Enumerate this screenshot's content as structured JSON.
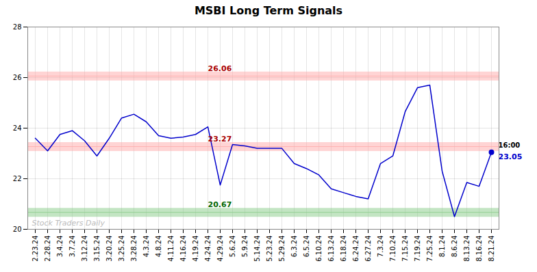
{
  "chart_data": {
    "type": "line",
    "title": "MSBI Long Term Signals",
    "categories": [
      "2.23.24",
      "2.28.24",
      "3.4.24",
      "3.7.24",
      "3.12.24",
      "3.15.24",
      "3.20.24",
      "3.25.24",
      "3.28.24",
      "4.3.24",
      "4.8.24",
      "4.11.24",
      "4.16.24",
      "4.19.24",
      "4.24.24",
      "4.29.24",
      "5.6.24",
      "5.9.24",
      "5.14.24",
      "5.23.24",
      "5.29.24",
      "6.3.24",
      "6.5.24",
      "6.10.24",
      "6.13.24",
      "6.18.24",
      "6.24.24",
      "6.27.24",
      "7.3.24",
      "7.10.24",
      "7.15.24",
      "7.19.24",
      "7.25.24",
      "8.1.24",
      "8.6.24",
      "8.13.24",
      "8.16.24",
      "8.21.24"
    ],
    "values": [
      23.6,
      23.1,
      23.75,
      23.9,
      23.5,
      22.9,
      23.6,
      24.4,
      24.55,
      24.25,
      23.7,
      23.6,
      23.65,
      23.75,
      24.05,
      21.75,
      23.35,
      23.3,
      23.2,
      23.2,
      23.2,
      22.6,
      22.4,
      22.15,
      21.6,
      21.45,
      21.3,
      21.2,
      22.6,
      22.9,
      24.65,
      25.6,
      25.7,
      22.3,
      20.5,
      21.85,
      21.7,
      23.05
    ],
    "color": "#0000cc",
    "ylim": [
      20,
      28
    ],
    "yticks": [
      20,
      22,
      24,
      26,
      28
    ],
    "grid": true,
    "hlines": [
      {
        "value": 26.06,
        "label": "26.06",
        "color": "#aa0000",
        "band_color": "#ffaaaa"
      },
      {
        "value": 23.27,
        "label": "23.27",
        "color": "#aa0000",
        "band_color": "#ffaaaa"
      },
      {
        "value": 20.67,
        "label": "20.67",
        "color": "#006600",
        "band_color": "#88cc88"
      }
    ],
    "last_label": {
      "time": "16:00",
      "price": "23.05",
      "color": "#0000cc"
    },
    "watermark": "Stock Traders Daily"
  }
}
